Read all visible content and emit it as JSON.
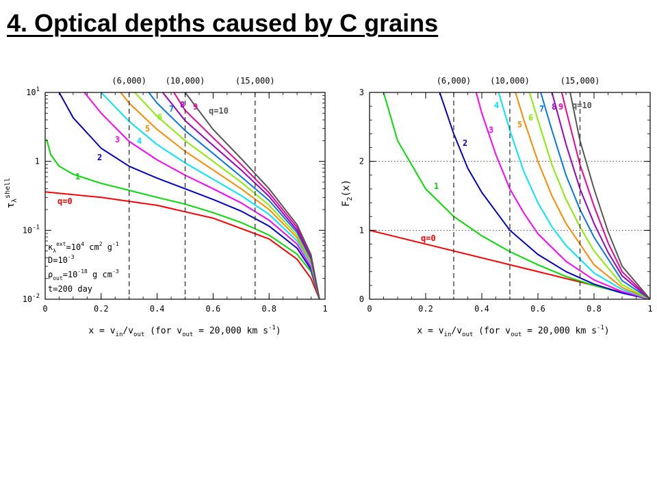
{
  "slide": {
    "title": "4. Optical depths caused by C grains"
  },
  "chart_data": [
    {
      "type": "line",
      "log_y": true,
      "xlim": [
        0,
        1
      ],
      "ylim": [
        0.01,
        10
      ],
      "xlabel": {
        "main": "x = v",
        "sub1": "in",
        "mid": "/v",
        "sub2": "out",
        "rest": " (for v",
        "sub3": "out",
        "tail": " = 20,000 km s",
        "sup": "-1",
        "end": ")"
      },
      "ylabel": {
        "main": "τ",
        "sub": "λ",
        "sup": "shell"
      },
      "x_ticks": [
        {
          "value": 0,
          "label": "0"
        },
        {
          "value": 0.2,
          "label": "0.2"
        },
        {
          "value": 0.4,
          "label": "0.4"
        },
        {
          "value": 0.6,
          "label": "0.6"
        },
        {
          "value": 0.8,
          "label": "0.8"
        },
        {
          "value": 1,
          "label": "1"
        }
      ],
      "y_ticks": [
        {
          "value": 10,
          "mant": "10",
          "exp": "1"
        },
        {
          "value": 1,
          "mant": "1",
          "exp": ""
        },
        {
          "value": 0.1,
          "mant": "10",
          "exp": "-1"
        },
        {
          "value": 0.01,
          "mant": "10",
          "exp": "-2"
        }
      ],
      "vlines": [
        {
          "x": 0.3,
          "label": "(6,000)"
        },
        {
          "x": 0.5,
          "label": "(10,000)"
        },
        {
          "x": 0.75,
          "label": "(15,000)"
        }
      ],
      "hlines": [],
      "series": [
        {
          "name": "q=0",
          "color": "#ff0000",
          "x": [
            0,
            0.2,
            0.4,
            0.6,
            0.8,
            0.9,
            0.95,
            0.98
          ],
          "y": [
            0.36,
            0.3,
            0.23,
            0.15,
            0.075,
            0.038,
            0.02,
            0.01
          ]
        },
        {
          "name": "1",
          "color": "#00dd00",
          "x": [
            0.005,
            0.02,
            0.05,
            0.1,
            0.2,
            0.3,
            0.4,
            0.5,
            0.6,
            0.7,
            0.8,
            0.9,
            0.95,
            0.98
          ],
          "y": [
            2.1,
            1.25,
            0.85,
            0.65,
            0.48,
            0.38,
            0.3,
            0.24,
            0.18,
            0.13,
            0.085,
            0.045,
            0.025,
            0.01
          ]
        },
        {
          "name": "2",
          "color": "#0000cc",
          "x": [
            0.05,
            0.1,
            0.2,
            0.3,
            0.4,
            0.5,
            0.6,
            0.7,
            0.8,
            0.9,
            0.95,
            0.98
          ],
          "y": [
            10,
            4.3,
            1.55,
            0.85,
            0.57,
            0.4,
            0.28,
            0.19,
            0.115,
            0.055,
            0.027,
            0.01
          ]
        },
        {
          "name": "3",
          "color": "#ff00ff",
          "x": [
            0.14,
            0.2,
            0.3,
            0.4,
            0.5,
            0.6,
            0.7,
            0.8,
            0.9,
            0.95,
            0.98
          ],
          "y": [
            10,
            5.0,
            1.95,
            1.05,
            0.63,
            0.4,
            0.25,
            0.14,
            0.063,
            0.029,
            0.01
          ]
        },
        {
          "name": "4",
          "color": "#00e5ff",
          "x": [
            0.2,
            0.3,
            0.4,
            0.5,
            0.6,
            0.7,
            0.8,
            0.9,
            0.95,
            0.98
          ],
          "y": [
            10,
            3.8,
            1.75,
            0.95,
            0.55,
            0.32,
            0.17,
            0.07,
            0.032,
            0.01
          ]
        },
        {
          "name": "5",
          "color": "#ff8800",
          "x": [
            0.27,
            0.3,
            0.4,
            0.5,
            0.6,
            0.7,
            0.8,
            0.9,
            0.95,
            0.98
          ],
          "y": [
            10,
            7.0,
            2.9,
            1.4,
            0.75,
            0.4,
            0.2,
            0.078,
            0.034,
            0.01
          ]
        },
        {
          "name": "6",
          "color": "#88ee00",
          "x": [
            0.32,
            0.4,
            0.5,
            0.6,
            0.7,
            0.8,
            0.9,
            0.95,
            0.98
          ],
          "y": [
            10,
            4.5,
            2.0,
            1.0,
            0.5,
            0.23,
            0.085,
            0.036,
            0.01
          ]
        },
        {
          "name": "7",
          "color": "#0077ee",
          "x": [
            0.37,
            0.4,
            0.5,
            0.6,
            0.7,
            0.8,
            0.9,
            0.95,
            0.98
          ],
          "y": [
            10,
            7.0,
            2.8,
            1.3,
            0.6,
            0.27,
            0.093,
            0.038,
            0.01
          ]
        },
        {
          "name": "8",
          "color": "#9900cc",
          "x": [
            0.42,
            0.5,
            0.6,
            0.7,
            0.8,
            0.9,
            0.95,
            0.98
          ],
          "y": [
            10,
            3.9,
            1.7,
            0.75,
            0.31,
            0.1,
            0.04,
            0.01
          ]
        },
        {
          "name": "9",
          "color": "#ee0099",
          "x": [
            0.46,
            0.5,
            0.6,
            0.7,
            0.8,
            0.9,
            0.95,
            0.98
          ],
          "y": [
            10,
            5.5,
            2.2,
            0.9,
            0.35,
            0.11,
            0.042,
            0.01
          ]
        },
        {
          "name": "q=10",
          "color": "#555555",
          "x": [
            0.5,
            0.6,
            0.7,
            0.8,
            0.9,
            0.95,
            0.98
          ],
          "y": [
            10,
            2.9,
            1.1,
            0.4,
            0.12,
            0.044,
            0.01
          ]
        }
      ],
      "side_notes": [
        {
          "main": "κ",
          "sub": "λ",
          "sup": "ext",
          "rest": "=10",
          "sup2": "4",
          "tail": " cm",
          "sup3": "2",
          "end": " g",
          "sup4": "-1"
        },
        {
          "main": "D=10",
          "sup": "-3"
        },
        {
          "main": "ρ",
          "sub": "out",
          "rest": "=10",
          "sup2": "-18",
          "tail": " g cm",
          "sup3": "-3"
        },
        {
          "main": "t=200 day"
        }
      ]
    },
    {
      "type": "line",
      "log_y": false,
      "xlim": [
        0,
        1
      ],
      "ylim": [
        0,
        3
      ],
      "xlabel": {
        "main": "x = v",
        "sub1": "in",
        "mid": "/v",
        "sub2": "out",
        "rest": " (for v",
        "sub3": "out",
        "tail": " = 20,000 km s",
        "sup": "-1",
        "end": ")"
      },
      "ylabel": {
        "main": "F",
        "sub": "2",
        "rest": "(x)"
      },
      "x_ticks": [
        {
          "value": 0,
          "label": "0"
        },
        {
          "value": 0.2,
          "label": "0.2"
        },
        {
          "value": 0.4,
          "label": "0.4"
        },
        {
          "value": 0.6,
          "label": "0.6"
        },
        {
          "value": 0.8,
          "label": "0.8"
        },
        {
          "value": 1,
          "label": "1"
        }
      ],
      "y_ticks": [
        {
          "value": 0,
          "mant": "0",
          "exp": ""
        },
        {
          "value": 1,
          "mant": "1",
          "exp": ""
        },
        {
          "value": 2,
          "mant": "2",
          "exp": ""
        },
        {
          "value": 3,
          "mant": "3",
          "exp": ""
        }
      ],
      "vlines": [
        {
          "x": 0.3,
          "label": "(6,000)"
        },
        {
          "x": 0.5,
          "label": "(10,000)"
        },
        {
          "x": 0.75,
          "label": "(15,000)"
        }
      ],
      "hlines": [
        1,
        2
      ],
      "series": [
        {
          "name": "q=0",
          "color": "#ff0000",
          "x": [
            0,
            1
          ],
          "y": [
            1,
            0
          ]
        },
        {
          "name": "1",
          "color": "#00dd00",
          "x": [
            0.05,
            0.1,
            0.2,
            0.3,
            0.4,
            0.5,
            0.6,
            0.7,
            0.8,
            0.9,
            1
          ],
          "y": [
            3.0,
            2.3,
            1.6,
            1.2,
            0.92,
            0.69,
            0.5,
            0.33,
            0.2,
            0.09,
            0
          ]
        },
        {
          "name": "2",
          "color": "#0000cc",
          "x": [
            0.25,
            0.3,
            0.35,
            0.4,
            0.5,
            0.6,
            0.7,
            0.8,
            0.9,
            1
          ],
          "y": [
            3.0,
            2.4,
            1.9,
            1.55,
            1.0,
            0.65,
            0.4,
            0.22,
            0.09,
            0
          ]
        },
        {
          "name": "3",
          "color": "#ff00ff",
          "x": [
            0.38,
            0.4,
            0.45,
            0.5,
            0.55,
            0.6,
            0.7,
            0.8,
            0.9,
            1
          ],
          "y": [
            3.0,
            2.7,
            2.1,
            1.6,
            1.25,
            0.95,
            0.55,
            0.28,
            0.11,
            0
          ]
        },
        {
          "name": "4",
          "color": "#00e5ff",
          "x": [
            0.46,
            0.5,
            0.55,
            0.6,
            0.65,
            0.7,
            0.8,
            0.9,
            1
          ],
          "y": [
            3.0,
            2.45,
            1.85,
            1.4,
            1.05,
            0.78,
            0.38,
            0.14,
            0
          ]
        },
        {
          "name": "5",
          "color": "#ff8800",
          "x": [
            0.52,
            0.55,
            0.6,
            0.65,
            0.7,
            0.8,
            0.9,
            1
          ],
          "y": [
            3.0,
            2.6,
            2.0,
            1.5,
            1.1,
            0.5,
            0.17,
            0
          ]
        },
        {
          "name": "6",
          "color": "#88ee00",
          "x": [
            0.57,
            0.6,
            0.65,
            0.7,
            0.75,
            0.8,
            0.9,
            1
          ],
          "y": [
            3.0,
            2.6,
            1.95,
            1.45,
            1.05,
            0.7,
            0.21,
            0
          ]
        },
        {
          "name": "7",
          "color": "#0077ee",
          "x": [
            0.61,
            0.65,
            0.7,
            0.75,
            0.8,
            0.9,
            1
          ],
          "y": [
            3.0,
            2.45,
            1.8,
            1.3,
            0.9,
            0.27,
            0
          ]
        },
        {
          "name": "8",
          "color": "#9900cc",
          "x": [
            0.65,
            0.7,
            0.75,
            0.8,
            0.85,
            0.9,
            1
          ],
          "y": [
            3.0,
            2.25,
            1.6,
            1.1,
            0.68,
            0.34,
            0
          ]
        },
        {
          "name": "9",
          "color": "#ee0099",
          "x": [
            0.685,
            0.7,
            0.75,
            0.8,
            0.85,
            0.9,
            1
          ],
          "y": [
            3.0,
            2.75,
            1.95,
            1.35,
            0.82,
            0.4,
            0
          ]
        },
        {
          "name": "q=10",
          "color": "#555555",
          "x": [
            0.715,
            0.75,
            0.8,
            0.85,
            0.9,
            1
          ],
          "y": [
            3.0,
            2.3,
            1.6,
            0.98,
            0.48,
            0
          ]
        }
      ],
      "side_notes": []
    }
  ]
}
